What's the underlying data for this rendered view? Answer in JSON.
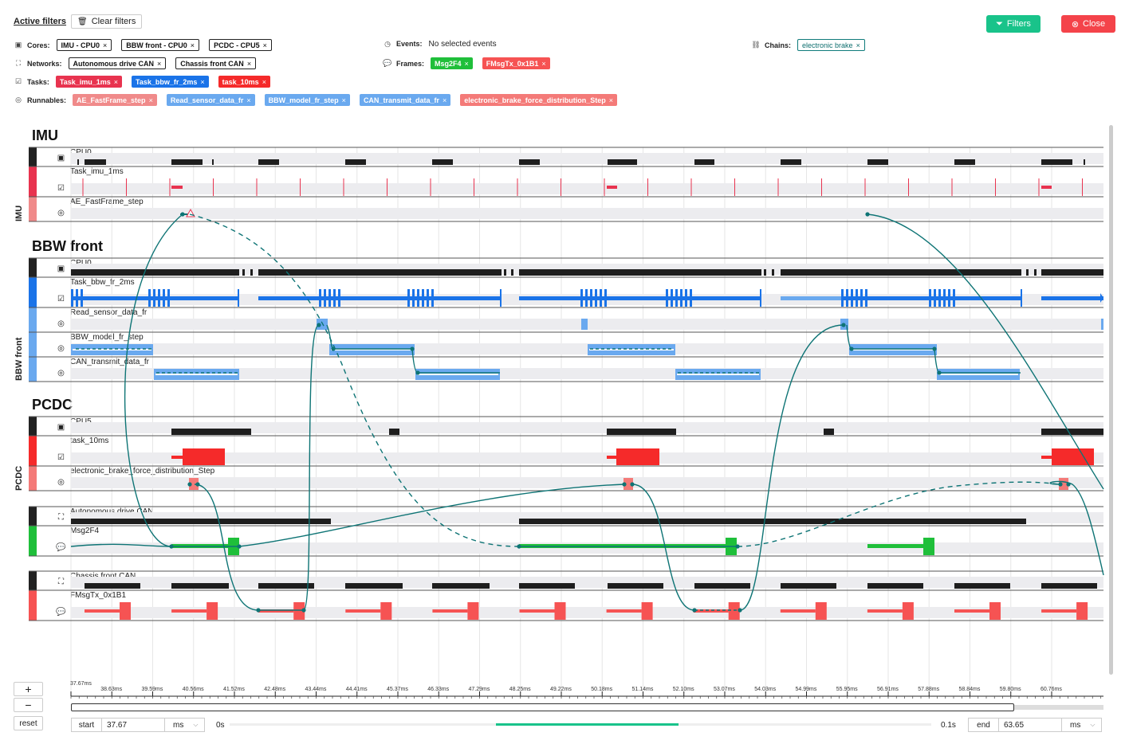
{
  "filters": {
    "title": "Active filters",
    "clear_label": "Clear filters",
    "cores": {
      "label": "Cores:",
      "chips": [
        "IMU - CPU0",
        "BBW front - CPU0",
        "PCDC - CPU5"
      ]
    },
    "networks": {
      "label": "Networks:",
      "chips": [
        "Autonomous drive CAN",
        "Chassis front CAN"
      ]
    },
    "tasks": {
      "label": "Tasks:",
      "chips": [
        "Task_imu_1ms",
        "Task_bbw_fr_2ms",
        "task_10ms"
      ]
    },
    "runnables": {
      "label": "Runnables:",
      "chips": [
        "AE_FastFrame_step",
        "Read_sensor_data_fr",
        "BBW_model_fr_step",
        "CAN_transmit_data_fr",
        "electronic_brake_force_distribution_Step"
      ]
    },
    "events": {
      "label": "Events:",
      "value": "No selected events"
    },
    "frames": {
      "label": "Frames:",
      "chips": [
        "Msg2F4",
        "FMsgTx_0x1B1"
      ]
    },
    "chains": {
      "label": "Chains:",
      "chips": [
        "electronic brake"
      ]
    },
    "chip_close": "×"
  },
  "buttons": {
    "filters": "Filters",
    "close": "Close"
  },
  "colors": {
    "task_imu": "#e8334f",
    "task_bbw": "#1a73e8",
    "task_pcdc": "#f52a2a",
    "run_imu": "#f08a8a",
    "run_bbw": "#6aa9ef",
    "run_pcdc": "#f47a78",
    "msg_green": "#1fbf3a",
    "msg_red": "#f65353",
    "chain": "#0e7475",
    "filters_btn": "#19c38a",
    "close_btn": "#f4434a"
  },
  "sections": {
    "imu": {
      "title": "IMU",
      "rows": [
        "CPU0",
        "Task_imu_1ms",
        "AE_FastFrame_step"
      ]
    },
    "bbw": {
      "title": "BBW front",
      "rows": [
        "CPU0",
        "Task_bbw_fr_2ms",
        "Read_sensor_data_fr",
        "BBW_model_fr_step",
        "CAN_transmit_data_fr"
      ]
    },
    "pcdc": {
      "title": "PCDC",
      "rows": [
        "CPU5",
        "task_10ms",
        "electronic_brake_force_distribution_Step"
      ]
    },
    "net1": {
      "rows": [
        "Autonomous drive CAN",
        "Msg2F4"
      ]
    },
    "net2": {
      "rows": [
        "Chassis front CAN",
        "FMsgTx_0x1B1"
      ]
    }
  },
  "axis": {
    "ticks": [
      "37.67ms",
      "38.63ms",
      "39.59ms",
      "40.56ms",
      "41.52ms",
      "42.48ms",
      "43.44ms",
      "44.41ms",
      "45.37ms",
      "46.33ms",
      "47.29ms",
      "48.25ms",
      "49.22ms",
      "50.18ms",
      "51.14ms",
      "52.10ms",
      "53.07ms",
      "54.03ms",
      "54.99ms",
      "55.95ms",
      "56.91ms",
      "57.88ms",
      "58.84ms",
      "59.80ms",
      "60.76ms"
    ]
  },
  "controls": {
    "zoom_in": "+",
    "zoom_out": "−",
    "reset": "reset",
    "start_label": "start",
    "start_value": "37.67",
    "start_unit": "ms",
    "end_label": "end",
    "end_value": "63.65",
    "end_unit": "ms",
    "range_min": "0s",
    "range_max": "0.1s",
    "window_start_fraction": 0.38,
    "window_end_fraction": 0.64
  }
}
